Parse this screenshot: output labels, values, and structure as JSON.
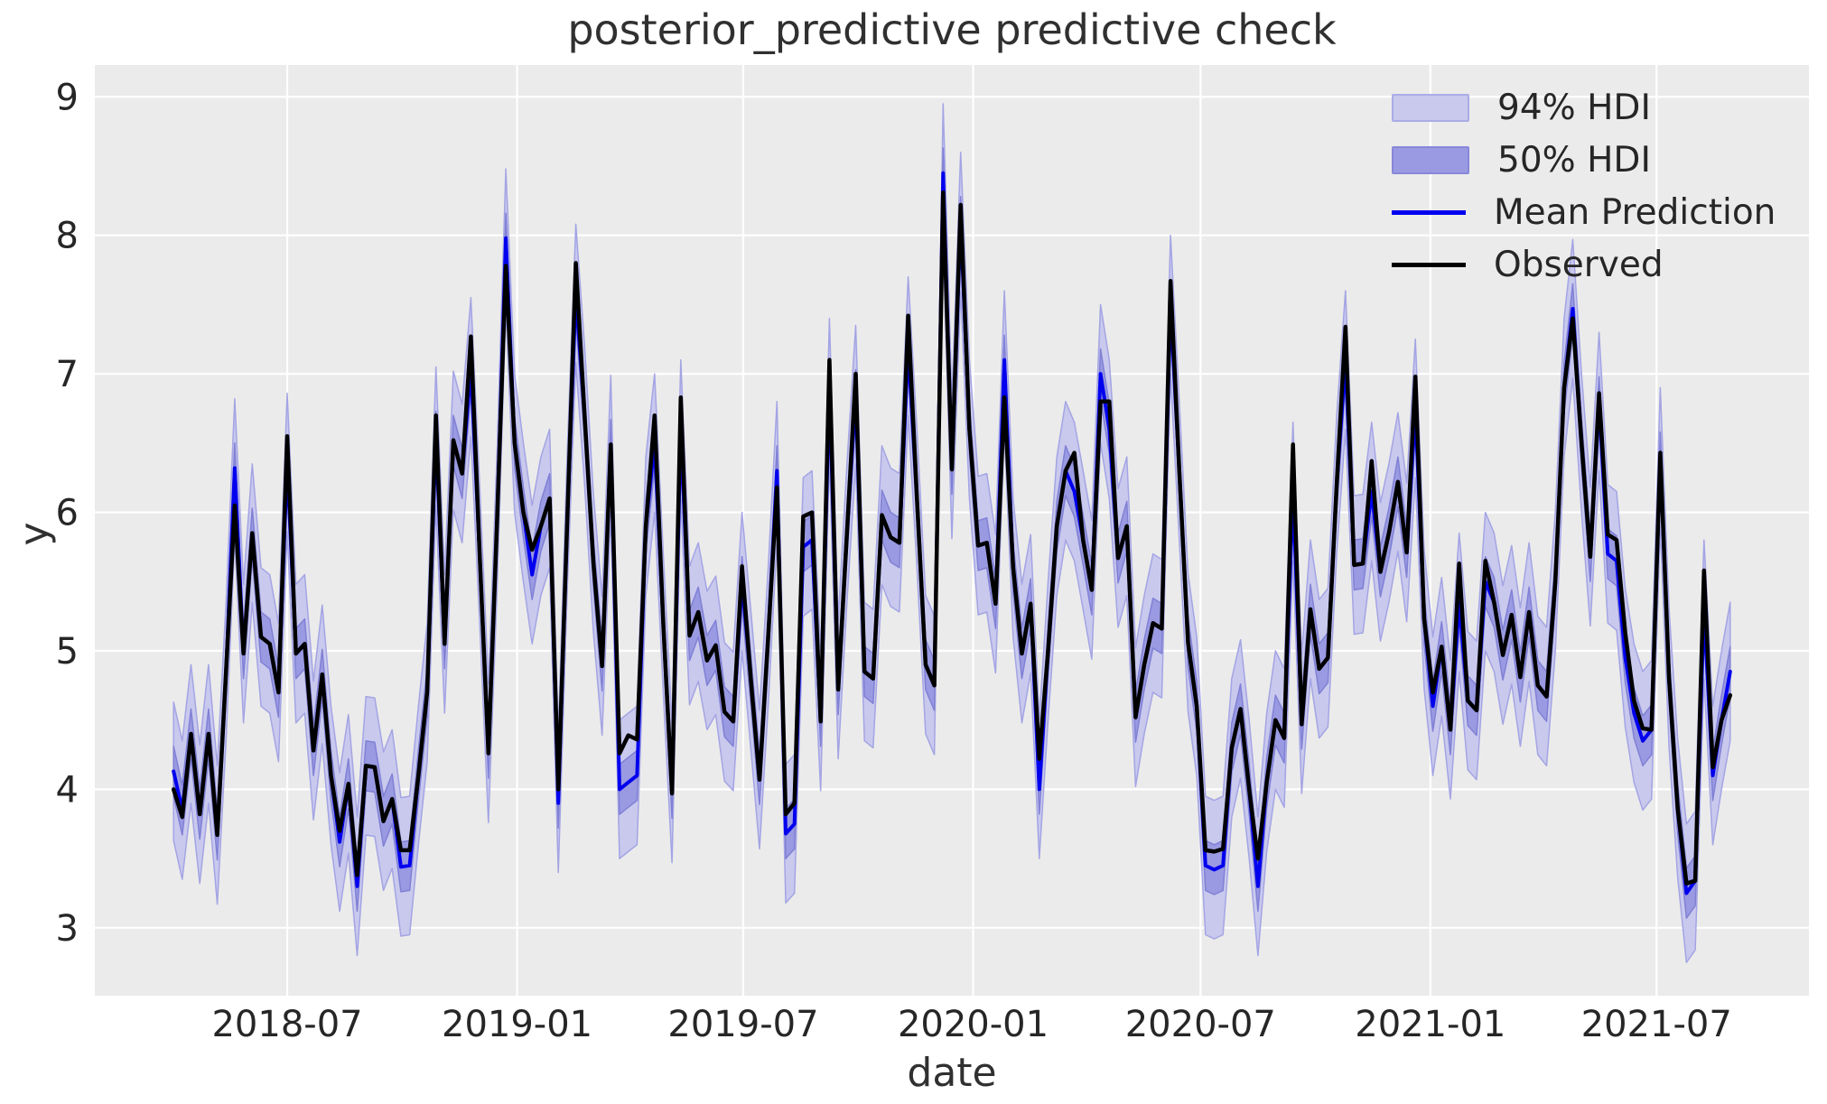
{
  "chart": {
    "title": "posterior_predictive predictive check",
    "xlabel": "date",
    "ylabel": "y"
  },
  "legend": {
    "items": [
      {
        "label": "94% HDI",
        "swatch": "patch-94"
      },
      {
        "label": "50% HDI",
        "swatch": "patch-50"
      },
      {
        "label": "Mean Prediction",
        "swatch": "line-mean"
      },
      {
        "label": "Observed",
        "swatch": "line-observed"
      }
    ]
  },
  "chart_data": {
    "type": "line",
    "title": "posterior_predictive predictive check",
    "xlabel": "date",
    "ylabel": "y",
    "background": "#ebebeb",
    "gridcolor": "#ffffff",
    "x_start_date": "2018-04-01",
    "x_step_days": 7,
    "n_points": 179,
    "xlim": [
      "2018-01-28",
      "2021-10-31"
    ],
    "ylim": [
      2.51,
      9.23
    ],
    "yticks": [
      3,
      4,
      5,
      6,
      7,
      8,
      9
    ],
    "xticks": [
      {
        "label": "2018-07",
        "date": "2018-07-01"
      },
      {
        "label": "2019-01",
        "date": "2019-01-01"
      },
      {
        "label": "2019-07",
        "date": "2019-07-01"
      },
      {
        "label": "2020-01",
        "date": "2020-01-01"
      },
      {
        "label": "2020-07",
        "date": "2020-07-01"
      },
      {
        "label": "2021-01",
        "date": "2021-01-01"
      },
      {
        "label": "2021-07",
        "date": "2021-07-01"
      }
    ],
    "series": [
      {
        "name": "94% HDI",
        "type": "band",
        "around": "Mean Prediction",
        "half_width": 0.5,
        "fill": "#c9c9ee",
        "edge": "#a4a4e4"
      },
      {
        "name": "50% HDI",
        "type": "band",
        "around": "Mean Prediction",
        "half_width": 0.18,
        "fill": "#9a9ae2",
        "edge": "#8080d5"
      },
      {
        "name": "Mean Prediction",
        "type": "line",
        "color": "#0000ee",
        "width": 4,
        "values": [
          4.13,
          3.85,
          4.4,
          3.82,
          4.4,
          3.67,
          4.85,
          6.32,
          4.98,
          5.85,
          5.1,
          5.05,
          4.7,
          6.36,
          4.98,
          5.05,
          4.28,
          4.83,
          4.1,
          3.62,
          4.04,
          3.3,
          4.17,
          4.16,
          3.77,
          3.93,
          3.44,
          3.45,
          4.1,
          4.7,
          6.55,
          5.05,
          6.52,
          6.28,
          7.05,
          5.7,
          4.26,
          5.94,
          7.98,
          6.5,
          6.0,
          5.55,
          5.9,
          6.1,
          3.9,
          5.9,
          7.58,
          6.7,
          5.64,
          4.89,
          6.49,
          4.0,
          4.05,
          4.1,
          5.9,
          6.5,
          5.2,
          3.97,
          6.6,
          5.11,
          5.28,
          4.93,
          5.04,
          4.56,
          4.49,
          5.5,
          4.8,
          4.07,
          5.1,
          6.3,
          3.68,
          3.75,
          5.75,
          5.8,
          4.49,
          6.9,
          4.72,
          5.85,
          6.85,
          4.85,
          4.8,
          5.98,
          5.82,
          5.78,
          7.2,
          6.1,
          4.9,
          4.75,
          8.45,
          6.31,
          8.1,
          6.6,
          5.76,
          5.78,
          5.34,
          7.1,
          5.6,
          4.98,
          5.34,
          4.0,
          5.0,
          5.9,
          6.3,
          6.15,
          5.8,
          5.44,
          7.0,
          6.6,
          5.67,
          5.9,
          4.52,
          4.9,
          5.2,
          5.16,
          7.5,
          6.3,
          5.06,
          4.6,
          3.45,
          3.42,
          3.45,
          4.3,
          4.58,
          4.0,
          3.3,
          4.05,
          4.5,
          4.37,
          6.15,
          4.47,
          5.3,
          4.87,
          4.95,
          6.2,
          7.1,
          5.62,
          5.63,
          6.15,
          5.57,
          5.86,
          6.22,
          5.71,
          6.75,
          5.23,
          4.6,
          5.03,
          4.43,
          5.35,
          4.64,
          4.57,
          5.5,
          5.35,
          4.97,
          5.26,
          4.81,
          5.28,
          4.75,
          4.67,
          5.5,
          6.9,
          7.47,
          6.5,
          5.68,
          6.8,
          5.7,
          5.65,
          4.95,
          4.55,
          4.35,
          4.43,
          6.4,
          4.8,
          3.86,
          3.25,
          3.34,
          5.3,
          4.1,
          4.5,
          4.85
        ]
      },
      {
        "name": "Observed",
        "type": "line",
        "color": "#000000",
        "width": 4.5,
        "values": [
          4.0,
          3.8,
          4.4,
          3.82,
          4.4,
          3.67,
          4.85,
          6.05,
          4.98,
          5.85,
          5.1,
          5.05,
          4.7,
          6.55,
          4.98,
          5.05,
          4.28,
          4.83,
          4.1,
          3.7,
          4.04,
          3.38,
          4.17,
          4.16,
          3.77,
          3.93,
          3.56,
          3.56,
          4.1,
          4.7,
          6.7,
          5.05,
          6.52,
          6.28,
          7.27,
          5.7,
          4.26,
          5.94,
          7.78,
          6.5,
          6.0,
          5.73,
          5.9,
          6.1,
          4.0,
          5.9,
          7.8,
          6.7,
          5.64,
          4.89,
          6.49,
          4.26,
          4.39,
          4.36,
          5.9,
          6.7,
          5.2,
          3.97,
          6.83,
          5.11,
          5.28,
          4.93,
          5.04,
          4.56,
          4.49,
          5.61,
          4.8,
          4.07,
          5.1,
          6.18,
          3.82,
          3.9,
          5.97,
          6.0,
          4.49,
          7.1,
          4.72,
          5.85,
          7.0,
          4.85,
          4.8,
          5.98,
          5.82,
          5.78,
          7.42,
          6.1,
          4.9,
          4.75,
          8.31,
          6.31,
          8.22,
          6.6,
          5.76,
          5.78,
          5.34,
          6.83,
          5.6,
          4.98,
          5.34,
          4.22,
          5.0,
          5.9,
          6.3,
          6.43,
          5.8,
          5.44,
          6.8,
          6.8,
          5.67,
          5.9,
          4.52,
          4.9,
          5.2,
          5.16,
          7.67,
          6.3,
          5.06,
          4.6,
          3.56,
          3.55,
          3.57,
          4.3,
          4.58,
          4.0,
          3.5,
          4.05,
          4.5,
          4.37,
          6.49,
          4.47,
          5.3,
          4.87,
          4.95,
          6.2,
          7.34,
          5.62,
          5.63,
          6.37,
          5.57,
          5.86,
          6.22,
          5.71,
          6.98,
          5.23,
          4.7,
          5.03,
          4.43,
          5.63,
          4.64,
          4.57,
          5.65,
          5.35,
          4.97,
          5.26,
          4.81,
          5.28,
          4.75,
          4.67,
          5.5,
          6.9,
          7.4,
          6.5,
          5.68,
          6.86,
          5.84,
          5.8,
          5.13,
          4.64,
          4.44,
          4.43,
          6.43,
          4.8,
          3.86,
          3.32,
          3.34,
          5.58,
          4.16,
          4.5,
          4.68
        ]
      }
    ],
    "legend_position": "upper right",
    "grid": true
  }
}
